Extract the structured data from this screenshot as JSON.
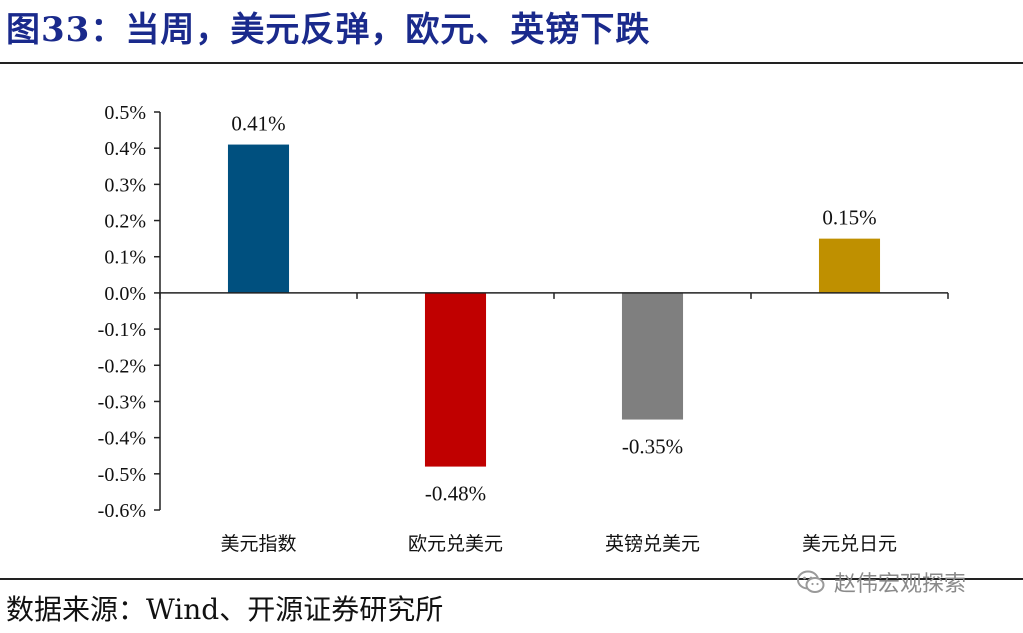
{
  "header": {
    "title": "图33：当周，美元反弹，欧元、英镑下跌"
  },
  "footer": {
    "source": "数据来源：Wind、开源证券研究所",
    "watermark": "赵伟宏观探索"
  },
  "chart_data": {
    "type": "bar",
    "title": "",
    "xlabel": "",
    "ylabel": "",
    "categories": [
      "美元指数",
      "欧元兑美元",
      "英镑兑美元",
      "美元兑日元"
    ],
    "values": [
      0.41,
      -0.48,
      -0.35,
      0.15
    ],
    "value_labels": [
      "0.41%",
      "-0.48%",
      "-0.35%",
      "0.15%"
    ],
    "bar_colors": [
      "#00507f",
      "#c00000",
      "#7f7f7f",
      "#bf9000"
    ],
    "ylim": [
      -0.6,
      0.5
    ],
    "yticks": [
      0.5,
      0.4,
      0.3,
      0.2,
      0.1,
      0.0,
      -0.1,
      -0.2,
      -0.3,
      -0.4,
      -0.5,
      -0.6
    ],
    "ytick_labels": [
      "0.5%",
      "0.4%",
      "0.3%",
      "0.2%",
      "0.1%",
      "0.0%",
      "-0.1%",
      "-0.2%",
      "-0.3%",
      "-0.4%",
      "-0.5%",
      "-0.6%"
    ],
    "grid": false,
    "legend": "none"
  }
}
